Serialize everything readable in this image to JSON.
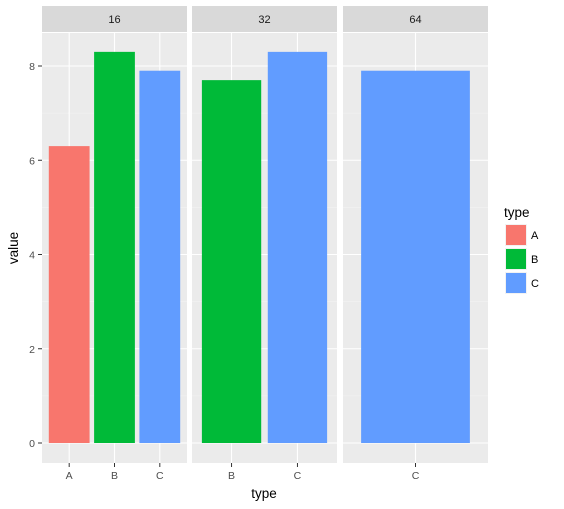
{
  "chart_data": {
    "type": "bar",
    "facet_by": "capacity",
    "xlabel": "type",
    "ylabel": "value",
    "ylim": [
      0,
      8.7
    ],
    "yticks": [
      0,
      2,
      4,
      6,
      8
    ],
    "grid": true,
    "legend": {
      "title": "type",
      "position": "right",
      "entries": [
        {
          "label": "A",
          "color": "#F8766D"
        },
        {
          "label": "B",
          "color": "#00BA38"
        },
        {
          "label": "C",
          "color": "#619CFF"
        }
      ]
    },
    "panels": [
      {
        "strip": "16",
        "categories": [
          "A",
          "B",
          "C"
        ],
        "values": [
          6.3,
          8.3,
          7.9
        ]
      },
      {
        "strip": "32",
        "categories": [
          "B",
          "C"
        ],
        "values": [
          7.7,
          8.3
        ]
      },
      {
        "strip": "64",
        "categories": [
          "C"
        ],
        "values": [
          7.9
        ]
      }
    ]
  },
  "colors": {
    "panel_bg": "#EBEBEB",
    "grid_major": "#FFFFFF",
    "strip_bg": "#D9D9D9",
    "A": "#F8766D",
    "B": "#00BA38",
    "C": "#619CFF"
  }
}
